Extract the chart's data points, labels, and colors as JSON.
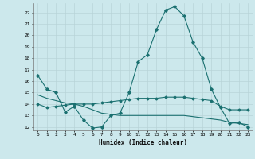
{
  "title": "",
  "xlabel": "Humidex (Indice chaleur)",
  "xlim": [
    -0.5,
    23.5
  ],
  "ylim": [
    11.7,
    22.8
  ],
  "yticks": [
    12,
    13,
    14,
    15,
    16,
    17,
    18,
    19,
    20,
    21,
    22
  ],
  "xticks": [
    0,
    1,
    2,
    3,
    4,
    5,
    6,
    7,
    8,
    9,
    10,
    11,
    12,
    13,
    14,
    15,
    16,
    17,
    18,
    19,
    20,
    21,
    22,
    23
  ],
  "bg_color": "#cce8ec",
  "grid_color": "#b8d4d8",
  "line_color": "#1a7070",
  "line1_x": [
    0,
    1,
    2,
    3,
    4,
    5,
    6,
    7,
    8,
    9,
    10,
    11,
    12,
    13,
    14,
    15,
    16,
    17,
    18,
    19,
    20,
    21,
    22,
    23
  ],
  "line1_y": [
    16.5,
    15.3,
    15.0,
    13.3,
    13.8,
    12.6,
    11.9,
    12.0,
    13.0,
    13.2,
    15.0,
    17.7,
    18.3,
    20.5,
    22.2,
    22.5,
    21.7,
    19.4,
    18.0,
    15.3,
    13.7,
    12.3,
    12.4,
    12.0
  ],
  "line2_x": [
    0,
    1,
    2,
    3,
    4,
    5,
    6,
    7,
    8,
    9,
    10,
    11,
    12,
    13,
    14,
    15,
    16,
    17,
    18,
    19,
    20,
    21,
    22,
    23
  ],
  "line2_y": [
    14.0,
    13.7,
    13.8,
    13.9,
    14.0,
    14.0,
    14.0,
    14.1,
    14.2,
    14.3,
    14.4,
    14.5,
    14.5,
    14.5,
    14.6,
    14.6,
    14.6,
    14.5,
    14.4,
    14.3,
    13.8,
    13.5,
    13.5,
    13.5
  ],
  "line3_x": [
    0,
    1,
    2,
    3,
    4,
    5,
    6,
    7,
    8,
    9,
    10,
    11,
    12,
    13,
    14,
    15,
    16,
    17,
    18,
    19,
    20,
    21,
    22,
    23
  ],
  "line3_y": [
    14.8,
    14.5,
    14.3,
    14.1,
    14.0,
    13.8,
    13.5,
    13.2,
    13.1,
    13.0,
    13.0,
    13.0,
    13.0,
    13.0,
    13.0,
    13.0,
    13.0,
    12.9,
    12.8,
    12.7,
    12.6,
    12.4,
    12.3,
    12.2
  ]
}
